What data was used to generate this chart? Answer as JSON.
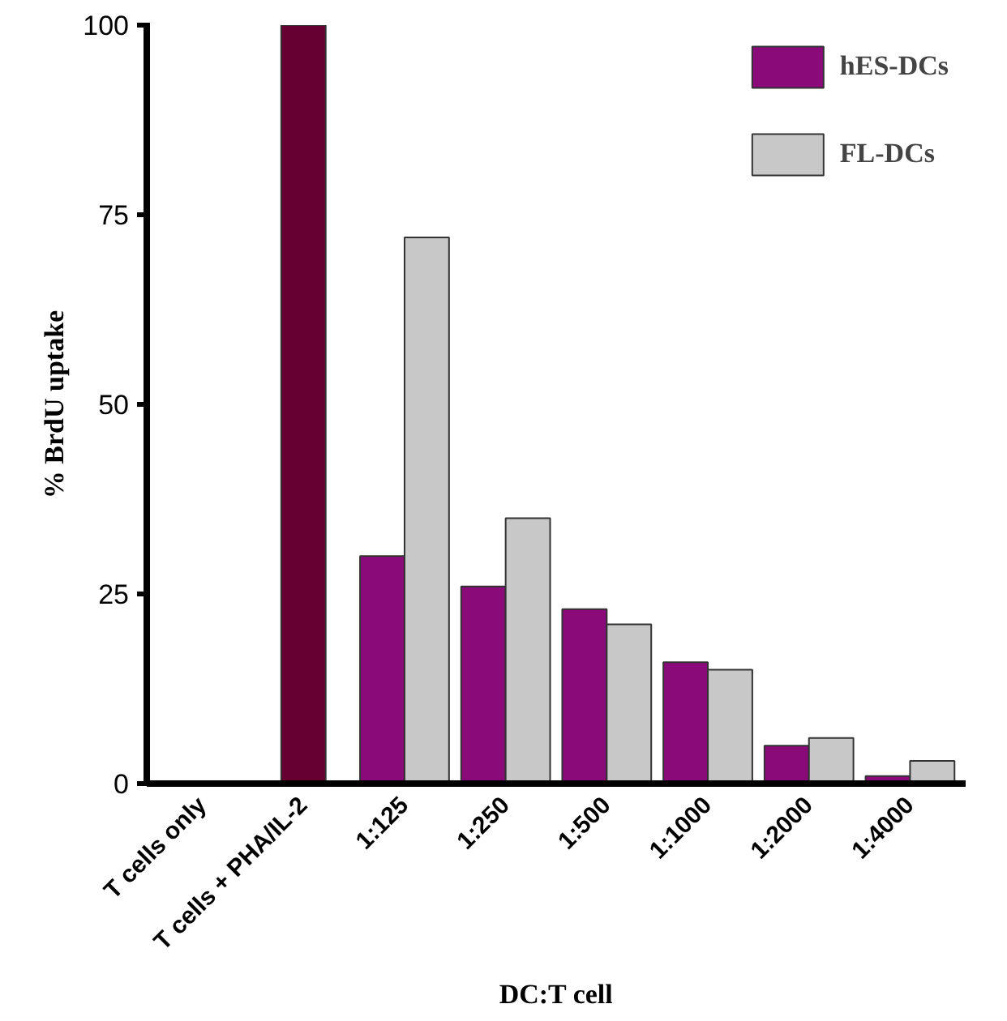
{
  "chart_data": {
    "type": "bar",
    "xlabel": "DC:T cell",
    "ylabel": "% BrdU uptake",
    "categories": [
      "T cells only",
      "T cells + PHA/IL-2",
      "1:125",
      "1:250",
      "1:500",
      "1:1000",
      "1:2000",
      "1:4000"
    ],
    "series": [
      {
        "color": "#660033",
        "values": [
          null,
          100,
          null,
          null,
          null,
          null,
          null,
          null
        ]
      },
      {
        "name": "hES-DCs",
        "color": "#8b0a7a",
        "values": [
          null,
          null,
          30,
          26,
          23,
          16,
          5,
          1
        ]
      },
      {
        "name": "FL-DCs",
        "color": "#c8c8c8",
        "values": [
          null,
          null,
          72,
          35,
          21,
          15,
          6,
          3
        ]
      }
    ],
    "ylim": [
      0,
      100
    ],
    "yticks": [
      0,
      25,
      50,
      75,
      100
    ],
    "grid": false,
    "legend": "top right"
  }
}
